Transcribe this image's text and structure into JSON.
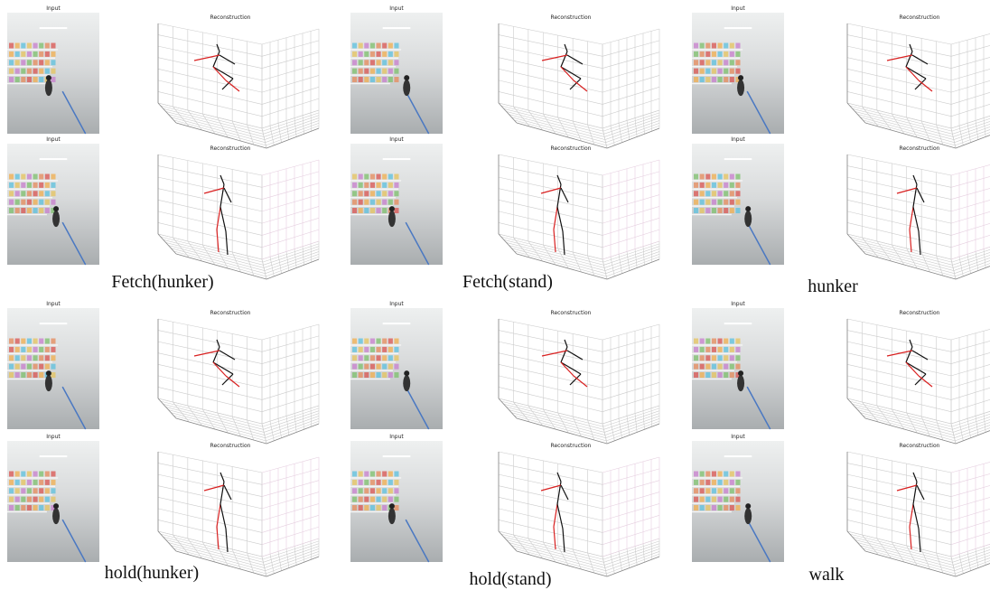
{
  "panels": [
    {
      "caption": "Fetch(hunker)",
      "samples": [
        {
          "input_label": "Input",
          "plot_title": "Reconstruction"
        },
        {
          "input_label": "Input",
          "plot_title": "Reconstruction"
        }
      ]
    },
    {
      "caption": "Fetch(stand)",
      "samples": [
        {
          "input_label": "Input",
          "plot_title": "Reconstruction"
        },
        {
          "input_label": "Input",
          "plot_title": "Reconstruction"
        }
      ]
    },
    {
      "caption": "hunker",
      "samples": [
        {
          "input_label": "Input",
          "plot_title": "Reconstruction"
        },
        {
          "input_label": "Input",
          "plot_title": "Reconstruction"
        }
      ]
    },
    {
      "caption": "hold(hunker)",
      "samples": [
        {
          "input_label": "Input",
          "plot_title": "Reconstruction"
        },
        {
          "input_label": "Input",
          "plot_title": "Reconstruction"
        }
      ]
    },
    {
      "caption": "hold(stand)",
      "samples": [
        {
          "input_label": "Input",
          "plot_title": "Reconstruction"
        },
        {
          "input_label": "Input",
          "plot_title": "Reconstruction"
        }
      ]
    },
    {
      "caption": "walk",
      "samples": [
        {
          "input_label": "Input",
          "plot_title": "Reconstruction"
        },
        {
          "input_label": "Input",
          "plot_title": "Reconstruction"
        }
      ]
    }
  ]
}
